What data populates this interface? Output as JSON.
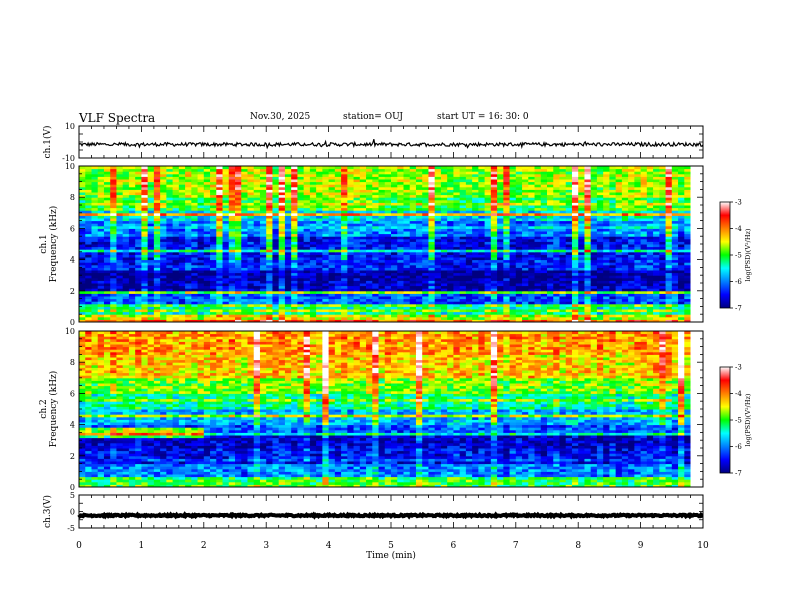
{
  "header": {
    "title": "VLF Spectra",
    "date": "Nov.30, 2025",
    "station": "station= OUJ",
    "start": "start  UT  =   16: 30: 0"
  },
  "chart_data": [
    {
      "type": "line",
      "name": "ch1-waveform",
      "ylabel": "ch.1(V)",
      "ylim": [
        -10,
        10
      ],
      "yticks": [
        "10",
        "-10"
      ],
      "xlim": [
        0,
        10
      ],
      "baseline": -1.5,
      "color": "#000000"
    },
    {
      "type": "heatmap",
      "name": "ch1-spectrogram",
      "ylabel": "ch.1\nFrequency  (kHz)",
      "ylabel_lines": [
        "ch.1",
        "Frequency  (kHz)"
      ],
      "ylim": [
        0,
        10
      ],
      "yticks": [
        "0",
        "2",
        "4",
        "6",
        "8",
        "10"
      ],
      "xlim": [
        0,
        9.8
      ],
      "colorbar": {
        "label": "log(PSD)(V²/Hz)",
        "ticks": [
          "-3",
          "-4",
          "-5",
          "-6",
          "-7"
        ],
        "range": [
          -7,
          -3
        ]
      },
      "bands_khz_log_psd": [
        [
          0.0,
          0.5,
          -4.6
        ],
        [
          0.5,
          1.0,
          -5.4
        ],
        [
          1.0,
          2.0,
          -6.2
        ],
        [
          2.0,
          2.6,
          -6.8
        ],
        [
          2.6,
          3.4,
          -6.9
        ],
        [
          3.4,
          4.0,
          -6.4
        ],
        [
          4.0,
          5.5,
          -6.5
        ],
        [
          5.5,
          6.5,
          -6.0
        ],
        [
          6.5,
          7.2,
          -5.6
        ],
        [
          7.2,
          8.0,
          -5.0
        ],
        [
          8.0,
          10.0,
          -4.7
        ]
      ]
    },
    {
      "type": "heatmap",
      "name": "ch2-spectrogram",
      "ylabel_lines": [
        "ch.2",
        "Frequency  (kHz)"
      ],
      "ylim": [
        0,
        10
      ],
      "yticks": [
        "0",
        "2",
        "4",
        "6",
        "8",
        "10"
      ],
      "xlim": [
        0,
        9.8
      ],
      "colorbar": {
        "label": "log(PSD)(V²/Hz)",
        "ticks": [
          "-3",
          "-4",
          "-5",
          "-6",
          "-7"
        ],
        "range": [
          -7,
          -3
        ]
      },
      "bands_khz_log_psd": [
        [
          0.0,
          0.5,
          -5.0
        ],
        [
          0.5,
          1.5,
          -6.0
        ],
        [
          1.5,
          2.5,
          -6.5
        ],
        [
          2.5,
          3.3,
          -6.7
        ],
        [
          3.3,
          4.0,
          -6.2
        ],
        [
          4.0,
          5.0,
          -5.8
        ],
        [
          5.0,
          6.0,
          -5.3
        ],
        [
          6.0,
          7.0,
          -4.8
        ],
        [
          7.0,
          8.5,
          -4.3
        ],
        [
          8.5,
          10.0,
          -4.1
        ]
      ]
    },
    {
      "type": "line",
      "name": "ch3-waveform",
      "ylabel": "ch.3(V)",
      "ylim": [
        -5,
        5
      ],
      "yticks": [
        "5",
        "0",
        "-5"
      ],
      "xlim": [
        0,
        10
      ],
      "baseline": -1.2,
      "color": "#000000"
    }
  ],
  "xaxis": {
    "label": "Time  (min)",
    "range": [
      0,
      10
    ],
    "ticks": [
      "0",
      "1",
      "2",
      "3",
      "4",
      "5",
      "6",
      "7",
      "8",
      "9",
      "10"
    ]
  }
}
